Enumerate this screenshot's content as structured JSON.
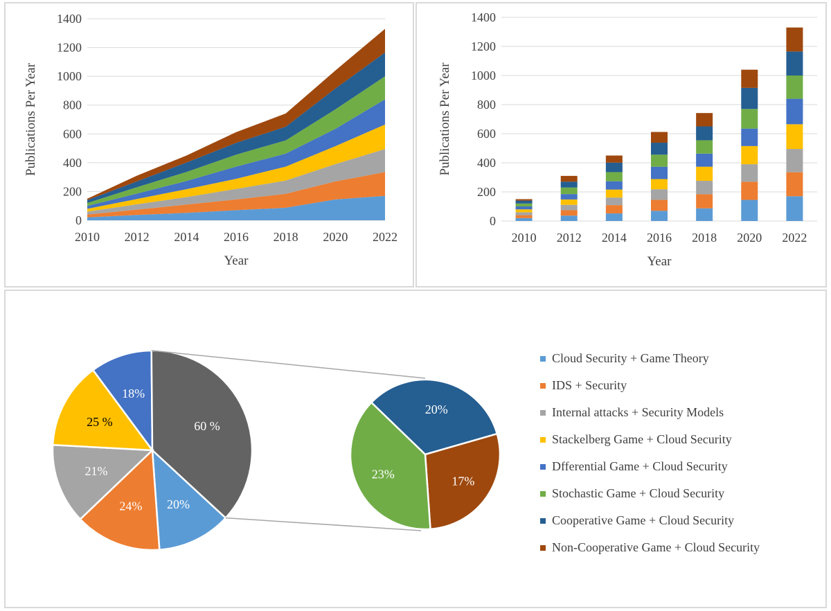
{
  "colors": [
    "#5b9bd5",
    "#ed7d31",
    "#a5a5a5",
    "#ffc000",
    "#4472c4",
    "#70ad47",
    "#255e91",
    "#9e480e"
  ],
  "chart_data": [
    {
      "type": "area",
      "stacked": true,
      "x": [
        2010,
        2012,
        2014,
        2016,
        2018,
        2020,
        2022
      ],
      "x_ticks": [
        "2010",
        "2012",
        "2014",
        "2016",
        "2018",
        "2020",
        "2022"
      ],
      "y_ticks": [
        "0",
        "200",
        "400",
        "600",
        "800",
        "1000",
        "1200",
        "1400"
      ],
      "xlabel": "Year",
      "ylabel": "Publications Per Year",
      "ylim": [
        0,
        1400
      ],
      "grid": true,
      "series": [
        {
          "name": "Cloud Security + Game Theory",
          "values": [
            20,
            37,
            52,
            70,
            87,
            145,
            170
          ]
        },
        {
          "name": "IDS + Security",
          "values": [
            20,
            37,
            57,
            75,
            97,
            125,
            165
          ]
        },
        {
          "name": "Internal attacks + Security Models",
          "values": [
            20,
            37,
            52,
            73,
            92,
            120,
            160
          ]
        },
        {
          "name": "Stackelberg Game + Cloud Security",
          "values": [
            20,
            37,
            55,
            70,
            97,
            125,
            170
          ]
        },
        {
          "name": "Dfferential Game + Cloud Security",
          "values": [
            20,
            37,
            57,
            85,
            90,
            120,
            175
          ]
        },
        {
          "name": "Stochastic Game + Cloud Security",
          "values": [
            20,
            45,
            63,
            83,
            92,
            135,
            160
          ]
        },
        {
          "name": "Cooperative Game + Cloud Security",
          "values": [
            20,
            40,
            65,
            82,
            95,
            145,
            165
          ]
        },
        {
          "name": "Non-Cooperative Game + Cloud Security",
          "values": [
            10,
            40,
            49,
            74,
            92,
            125,
            165
          ]
        }
      ]
    },
    {
      "type": "bar",
      "stacked": true,
      "categories": [
        "2010",
        "2012",
        "2014",
        "2016",
        "2018",
        "2020",
        "2022"
      ],
      "y_ticks": [
        "0",
        "200",
        "400",
        "600",
        "800",
        "1000",
        "1200",
        "1400"
      ],
      "xlabel": "Year",
      "ylabel": "Publications Per Year",
      "ylim": [
        0,
        1400
      ],
      "grid": true,
      "series": [
        {
          "name": "Cloud Security + Game Theory",
          "values": [
            20,
            37,
            52,
            70,
            87,
            145,
            170
          ]
        },
        {
          "name": "IDS + Security",
          "values": [
            20,
            37,
            57,
            75,
            97,
            125,
            165
          ]
        },
        {
          "name": "Internal attacks + Security Models",
          "values": [
            20,
            37,
            52,
            73,
            92,
            120,
            160
          ]
        },
        {
          "name": "Stackelberg Game + Cloud Security",
          "values": [
            20,
            37,
            55,
            70,
            97,
            125,
            170
          ]
        },
        {
          "name": "Dfferential Game + Cloud Security",
          "values": [
            20,
            37,
            57,
            85,
            90,
            120,
            175
          ]
        },
        {
          "name": "Stochastic Game + Cloud Security",
          "values": [
            20,
            45,
            63,
            83,
            92,
            135,
            160
          ]
        },
        {
          "name": "Cooperative Game + Cloud Security",
          "values": [
            20,
            40,
            65,
            82,
            95,
            145,
            165
          ]
        },
        {
          "name": "Non-Cooperative Game + Cloud Security",
          "values": [
            10,
            40,
            49,
            74,
            92,
            125,
            165
          ]
        }
      ]
    },
    {
      "type": "pie",
      "variant": "pie-of-pie",
      "main": {
        "slices": [
          {
            "label": "18%",
            "color": "#4472c4"
          },
          {
            "label": "60 %",
            "color": "#636363"
          },
          {
            "label": "20%",
            "color": "#5b9bd5"
          },
          {
            "label": "24%",
            "color": "#ed7d31"
          },
          {
            "label": "21%",
            "color": "#a5a5a5"
          },
          {
            "label": "25 %",
            "color": "#ffc000"
          }
        ],
        "shares": [
          10,
          37,
          12,
          14,
          13,
          14
        ]
      },
      "secondary": {
        "slices": [
          {
            "label": "20%",
            "color": "#255e91"
          },
          {
            "label": "17%",
            "color": "#9e480e"
          },
          {
            "label": "23%",
            "color": "#70ad47"
          }
        ],
        "shares": [
          20,
          17,
          23
        ]
      },
      "legend": [
        "Cloud Security + Game Theory",
        "IDS + Security",
        "Internal attacks + Security Models",
        "Stackelberg Game + Cloud Security",
        "Dfferential Game + Cloud Security",
        "Stochastic Game + Cloud Security",
        "Cooperative Game + Cloud Security",
        "Non-Cooperative Game + Cloud Security"
      ]
    }
  ]
}
